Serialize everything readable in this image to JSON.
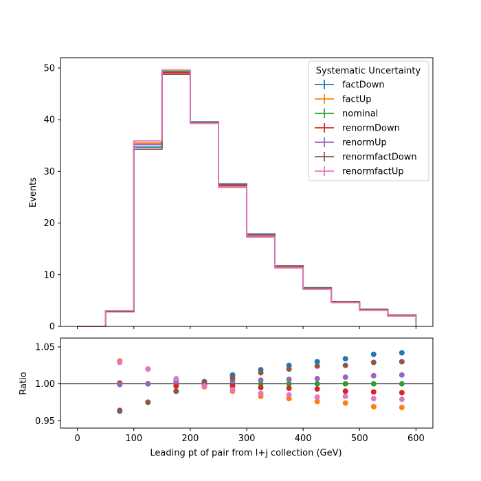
{
  "chart_data": [
    {
      "type": "line",
      "ylabel": "Events",
      "xlim": [
        -30,
        630
      ],
      "ylim": [
        0,
        52
      ],
      "yticks": [
        0,
        10,
        20,
        30,
        40,
        50
      ],
      "xticks": [
        0,
        100,
        200,
        300,
        400,
        500,
        600
      ],
      "bin_edges": [
        0,
        50,
        100,
        150,
        200,
        250,
        300,
        350,
        400,
        450,
        500,
        550,
        600
      ],
      "legend": {
        "title": "Systematic Uncertainty",
        "placement": "top-right"
      },
      "series": [
        {
          "name": "factDown",
          "color": "#1f77b4",
          "values": [
            0.0,
            2.85,
            34.7,
            49.5,
            39.6,
            27.6,
            17.9,
            11.7,
            7.5,
            4.8,
            3.3,
            2.2
          ]
        },
        {
          "name": "factUp",
          "color": "#ff7f0e",
          "values": [
            0.0,
            3.05,
            35.5,
            49.4,
            39.3,
            26.9,
            17.3,
            11.3,
            7.2,
            4.6,
            3.1,
            2.0
          ]
        },
        {
          "name": "nominal",
          "color": "#2ca02c",
          "values": [
            0.0,
            2.95,
            35.2,
            49.3,
            39.4,
            27.3,
            17.6,
            11.55,
            7.35,
            4.7,
            3.2,
            2.1
          ]
        },
        {
          "name": "renormDown",
          "color": "#d62728",
          "values": [
            0.0,
            2.95,
            35.2,
            49.1,
            39.3,
            27.2,
            17.5,
            11.5,
            7.3,
            4.65,
            3.15,
            2.05
          ]
        },
        {
          "name": "renormUp",
          "color": "#9467bd",
          "values": [
            0.0,
            2.95,
            35.2,
            49.6,
            39.5,
            27.4,
            17.65,
            11.6,
            7.4,
            4.75,
            3.25,
            2.12
          ]
        },
        {
          "name": "renormfactDown",
          "color": "#8c564b",
          "values": [
            0.0,
            2.85,
            34.3,
            48.8,
            39.5,
            27.5,
            17.85,
            11.7,
            7.45,
            4.8,
            3.3,
            2.2
          ]
        },
        {
          "name": "renormfactUp",
          "color": "#e377c2",
          "values": [
            0.0,
            3.05,
            35.9,
            49.6,
            39.3,
            27.0,
            17.35,
            11.35,
            7.2,
            4.6,
            3.1,
            2.0
          ]
        }
      ]
    },
    {
      "type": "scatter",
      "xlabel": "Leading pt of pair from l+j collection (GeV)",
      "ylabel": "Ratio",
      "xlim": [
        -30,
        630
      ],
      "ylim": [
        0.94,
        1.062
      ],
      "yticks": [
        0.95,
        1.0,
        1.05
      ],
      "yticklabels": [
        "0.95",
        "1.00",
        "1.05"
      ],
      "xticks": [
        0,
        100,
        200,
        300,
        400,
        500,
        600
      ],
      "reference_line": 1.0,
      "x": [
        75,
        125,
        175,
        225,
        275,
        325,
        375,
        425,
        475,
        525,
        575
      ],
      "series": [
        {
          "name": "factDown",
          "color": "#1f77b4",
          "values": [
            0.963,
            0.975,
            0.99,
            1.003,
            1.012,
            1.019,
            1.025,
            1.03,
            1.034,
            1.04,
            1.042
          ]
        },
        {
          "name": "factUp",
          "color": "#ff7f0e",
          "values": [
            1.031,
            1.02,
            1.006,
            0.996,
            0.99,
            0.983,
            0.98,
            0.976,
            0.974,
            0.969,
            0.968
          ]
        },
        {
          "name": "nominal",
          "color": "#2ca02c",
          "values": [
            1.0,
            1.0,
            1.0,
            1.0,
            1.0,
            1.0,
            1.0,
            1.0,
            1.0,
            1.0,
            1.0
          ]
        },
        {
          "name": "renormDown",
          "color": "#d62728",
          "values": [
            1.001,
            1.0,
            0.997,
            0.998,
            0.997,
            0.995,
            0.994,
            0.993,
            0.99,
            0.989,
            0.988
          ]
        },
        {
          "name": "renormUp",
          "color": "#9467bd",
          "values": [
            0.999,
            1.0,
            1.003,
            1.002,
            1.004,
            1.005,
            1.006,
            1.007,
            1.009,
            1.011,
            1.012
          ]
        },
        {
          "name": "renormfactDown",
          "color": "#8c564b",
          "values": [
            0.964,
            0.975,
            0.99,
            1.002,
            1.008,
            1.015,
            1.02,
            1.024,
            1.025,
            1.029,
            1.03
          ]
        },
        {
          "name": "renormfactUp",
          "color": "#e377c2",
          "values": [
            1.029,
            1.02,
            1.007,
            0.997,
            0.992,
            0.987,
            0.985,
            0.982,
            0.983,
            0.98,
            0.979
          ]
        }
      ]
    }
  ]
}
